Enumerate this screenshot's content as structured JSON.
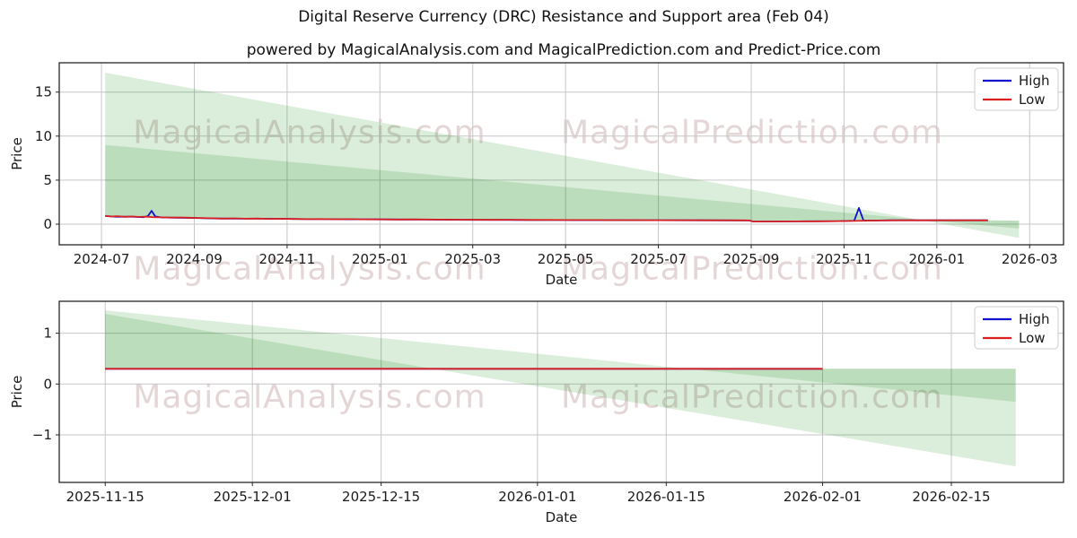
{
  "title": "Digital Reserve Currency (DRC) Resistance and Support area (Feb 04)",
  "subtitle": "powered by MagicalAnalysis.com and MagicalPrediction.com and Predict-Price.com",
  "watermark": {
    "left_text": "MagicalAnalysis.com",
    "right_text": "MagicalPrediction.com",
    "color": "rgba(166,118,118,0.30)"
  },
  "colors": {
    "grid": "#c6c6c6",
    "axis": "#262626",
    "text": "#1a1a1a",
    "background": "#ffffff",
    "high_blue": "#1212cc",
    "low_red": "#dc2020",
    "fill_green": "rgba(0,128,0,0.14)"
  },
  "chart_data": [
    {
      "type": "line",
      "xlabel": "Date",
      "ylabel": "Price",
      "x_unit": "months since 2024-07-01",
      "xlim": [
        -0.91,
        20.73
      ],
      "ylim": [
        -2.34,
        18.33
      ],
      "grid": true,
      "legend_position": "upper right",
      "x_ticks": {
        "pos": [
          0,
          2,
          4,
          6,
          8,
          10,
          12,
          14,
          16,
          18,
          20
        ],
        "labels": [
          "2024-07",
          "2024-09",
          "2024-11",
          "2025-01",
          "2025-03",
          "2025-05",
          "2025-07",
          "2025-09",
          "2025-11",
          "2026-01",
          "2026-03"
        ]
      },
      "y_ticks": {
        "pos": [
          0,
          5,
          10,
          15
        ],
        "labels": [
          "0",
          "5",
          "10",
          "15"
        ]
      },
      "fills": [
        {
          "name": "resistance-area-outer",
          "color": "rgba(0,128,0,0.14)",
          "upper_x": [
            0.08,
            19.77
          ],
          "upper_y": [
            17.2,
            -1.55
          ],
          "lower_x": [
            0.08,
            2,
            4,
            6,
            8,
            10,
            12,
            13.95,
            14.05,
            16,
            17,
            19.1,
            19.77
          ],
          "lower_y": [
            0.95,
            0.71,
            0.6,
            0.55,
            0.5,
            0.47,
            0.45,
            0.43,
            0.3,
            0.36,
            0.44,
            0.44,
            0.4
          ]
        },
        {
          "name": "resistance-area-inner",
          "color": "rgba(0,128,0,0.14)",
          "upper_x": [
            0.08,
            19.77
          ],
          "upper_y": [
            9.0,
            -0.5
          ],
          "lower_x": [
            0.08,
            2,
            4,
            6,
            8,
            10,
            12,
            13.95,
            14.05,
            16,
            17,
            19.1,
            19.77
          ],
          "lower_y": [
            0.95,
            0.71,
            0.6,
            0.55,
            0.5,
            0.47,
            0.45,
            0.43,
            0.3,
            0.36,
            0.44,
            0.44,
            0.4
          ]
        }
      ],
      "series": [
        {
          "name": "High",
          "color": "#1212cc",
          "x": [
            0.08,
            0.3,
            0.6,
            0.9,
            1.0,
            1.08,
            1.16,
            1.3,
            1.6,
            2.0,
            2.5,
            3.0,
            3.5,
            4.0,
            4.5,
            5.0,
            5.5,
            6.0,
            6.5,
            7.0,
            7.5,
            8.0,
            8.5,
            9.0,
            9.5,
            10.0,
            10.5,
            11.0,
            11.5,
            12.0,
            12.5,
            13.0,
            13.5,
            13.95,
            14.05,
            14.6,
            15.2,
            15.9,
            16.22,
            16.32,
            16.42,
            16.6,
            17.0,
            17.5,
            18.0,
            18.5,
            19.1
          ],
          "y": [
            0.93,
            0.85,
            0.86,
            0.8,
            0.92,
            1.52,
            0.88,
            0.77,
            0.74,
            0.7,
            0.64,
            0.62,
            0.62,
            0.6,
            0.57,
            0.57,
            0.55,
            0.54,
            0.53,
            0.52,
            0.5,
            0.49,
            0.49,
            0.48,
            0.47,
            0.47,
            0.46,
            0.46,
            0.45,
            0.45,
            0.44,
            0.44,
            0.43,
            0.42,
            0.3,
            0.31,
            0.33,
            0.35,
            0.4,
            1.85,
            0.42,
            0.41,
            0.44,
            0.44,
            0.44,
            0.44,
            0.44
          ]
        },
        {
          "name": "Low",
          "color": "#dc2020",
          "x": [
            0.08,
            0.2,
            0.35,
            0.5,
            0.65,
            0.8,
            0.95,
            1.1,
            1.3,
            1.5,
            1.7,
            1.9,
            2.1,
            2.35,
            2.6,
            2.85,
            3.1,
            3.35,
            3.6,
            3.85,
            4.1,
            4.4,
            4.7,
            5.0,
            5.3,
            5.6,
            6.0,
            6.4,
            6.8,
            7.2,
            7.6,
            8.0,
            8.4,
            8.8,
            9.2,
            9.6,
            10.0,
            10.5,
            11.0,
            11.5,
            12.0,
            12.5,
            13.0,
            13.5,
            13.95,
            14.05,
            14.5,
            15.0,
            15.5,
            15.9,
            16.2,
            16.5,
            16.8,
            17.2,
            17.6,
            18.0,
            18.5,
            19.1
          ],
          "y": [
            0.95,
            0.87,
            0.91,
            0.84,
            0.88,
            0.83,
            0.86,
            0.8,
            0.78,
            0.75,
            0.77,
            0.74,
            0.7,
            0.67,
            0.63,
            0.66,
            0.62,
            0.64,
            0.6,
            0.62,
            0.59,
            0.57,
            0.58,
            0.56,
            0.57,
            0.55,
            0.55,
            0.53,
            0.54,
            0.52,
            0.51,
            0.5,
            0.49,
            0.5,
            0.48,
            0.48,
            0.47,
            0.47,
            0.46,
            0.46,
            0.45,
            0.45,
            0.44,
            0.44,
            0.43,
            0.3,
            0.31,
            0.32,
            0.33,
            0.35,
            0.37,
            0.4,
            0.42,
            0.44,
            0.44,
            0.44,
            0.44,
            0.44
          ]
        }
      ]
    },
    {
      "type": "line",
      "xlabel": "Date",
      "ylabel": "Price",
      "x_unit": "days since 2025-11-15",
      "xlim": [
        -5,
        104.2
      ],
      "ylim": [
        -1.935,
        1.628
      ],
      "grid": true,
      "legend_position": "upper right",
      "x_ticks": {
        "pos": [
          0,
          16,
          30,
          47,
          61,
          78,
          92
        ],
        "labels": [
          "2025-11-15",
          "2025-12-01",
          "2025-12-15",
          "2026-01-01",
          "2026-01-15",
          "2026-02-01",
          "2026-02-15"
        ]
      },
      "y_ticks": {
        "pos": [
          -1,
          0,
          1
        ],
        "labels": [
          "−1",
          "0",
          "1"
        ]
      },
      "fills": [
        {
          "name": "support-area-outer",
          "color": "rgba(0,128,0,0.14)",
          "upper_x": [
            0,
            99
          ],
          "upper_y": [
            1.45,
            -0.35
          ],
          "lower_x": [
            0,
            99
          ],
          "lower_y": [
            0.3,
            0.3
          ]
        },
        {
          "name": "support-area-inner",
          "color": "rgba(0,128,0,0.14)",
          "upper_x": [
            0,
            99
          ],
          "upper_y": [
            1.38,
            -1.62
          ],
          "lower_x": [
            0,
            99
          ],
          "lower_y": [
            0.3,
            0.3
          ]
        }
      ],
      "series": [
        {
          "name": "High",
          "color": "#1212cc",
          "x": [
            0,
            78
          ],
          "y": [
            0.3,
            0.3
          ]
        },
        {
          "name": "Low",
          "color": "#dc2020",
          "x": [
            0,
            78
          ],
          "y": [
            0.3,
            0.3
          ]
        }
      ]
    }
  ]
}
